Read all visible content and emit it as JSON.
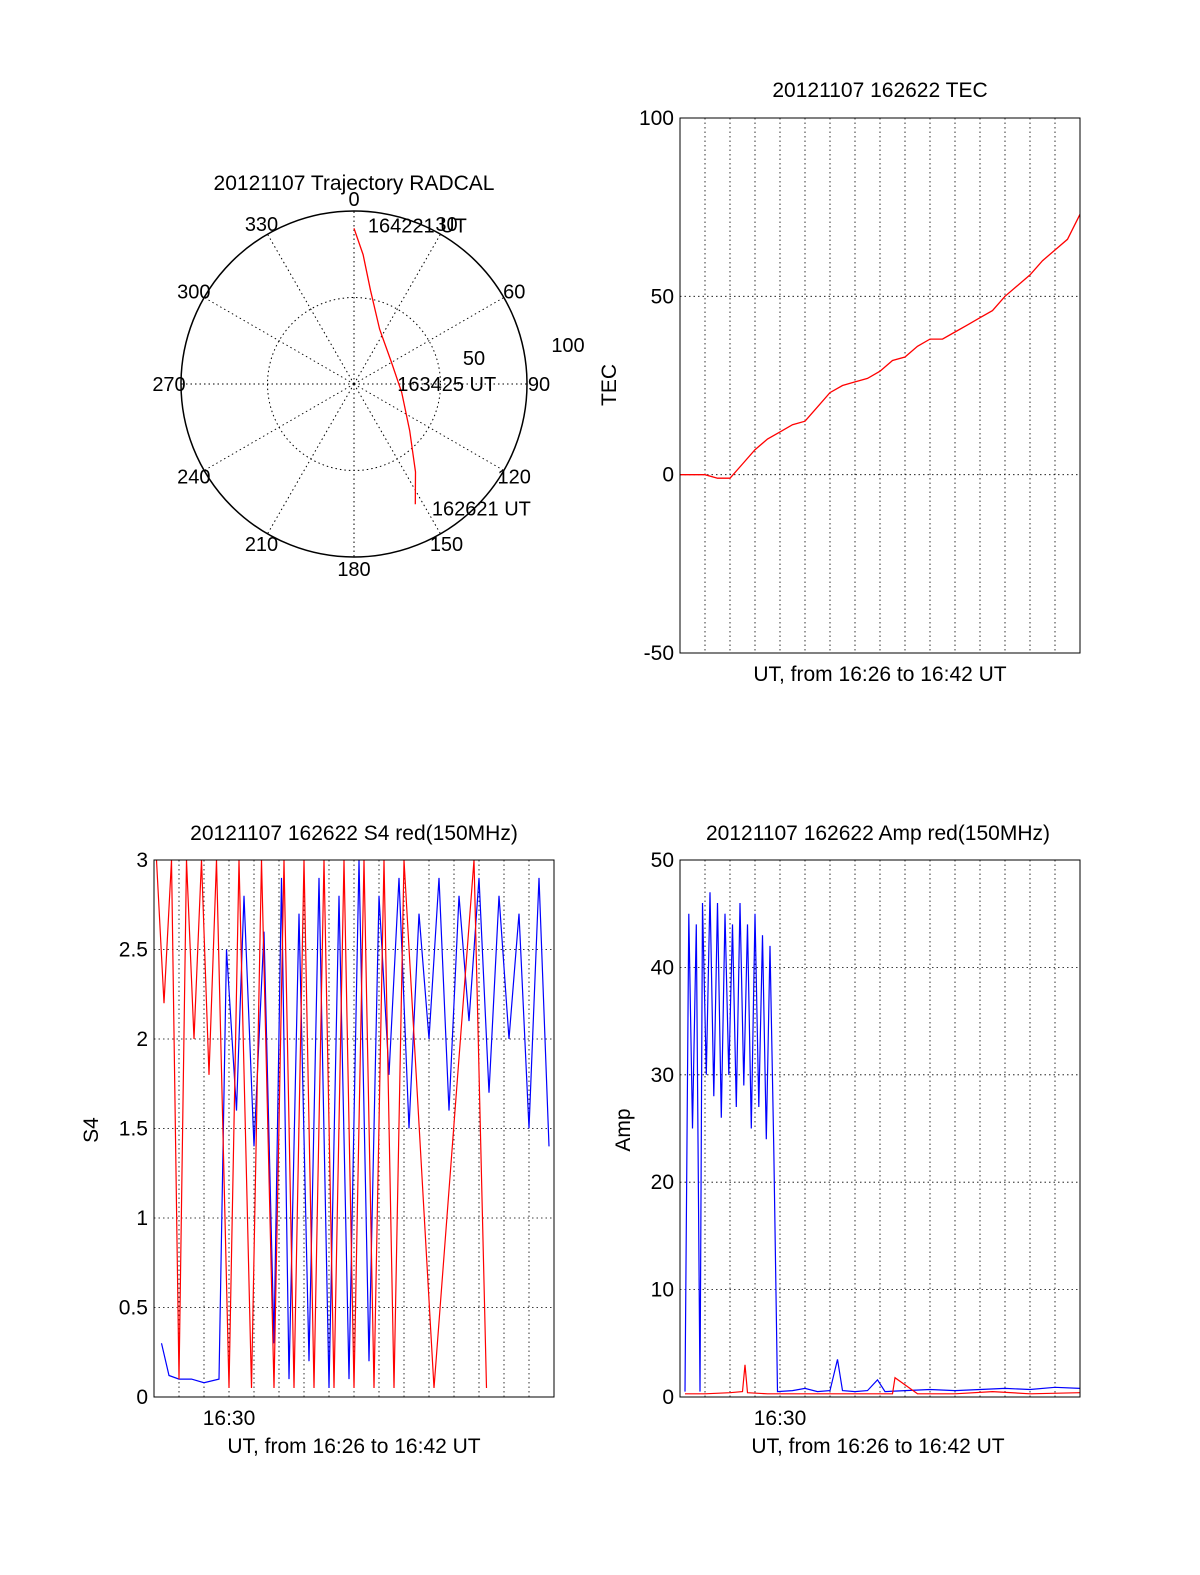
{
  "chart_data": [
    {
      "type": "polar",
      "title": "20121107 Trajectory RADCAL",
      "angle_labels": [
        "0",
        "30",
        "60",
        "90",
        "120",
        "150",
        "180",
        "210",
        "240",
        "270",
        "300",
        "330"
      ],
      "radius_labels": [
        "50",
        "100"
      ],
      "rlim": [
        0,
        100
      ],
      "grid": true,
      "trajectory": {
        "color": "#ff0000",
        "points": [
          {
            "az": 0,
            "r": 90
          },
          {
            "az": 4,
            "r": 75
          },
          {
            "az": 10,
            "r": 55
          },
          {
            "az": 25,
            "r": 35
          },
          {
            "az": 60,
            "r": 25
          },
          {
            "az": 100,
            "r": 28
          },
          {
            "az": 130,
            "r": 42
          },
          {
            "az": 145,
            "r": 62
          },
          {
            "az": 153,
            "r": 78
          }
        ]
      },
      "annotations": [
        {
          "text": "164221 UT",
          "az": 5,
          "r": 92
        },
        {
          "text": "163425 UT",
          "az": 90,
          "r": 25
        },
        {
          "text": "162621 UT",
          "az": 148,
          "r": 85
        }
      ]
    },
    {
      "type": "line",
      "title": "20121107 162622 TEC",
      "xlabel": "UT, from 16:26 to 16:42 UT",
      "ylabel": "TEC",
      "xlim": [
        0,
        16
      ],
      "ylim": [
        -50,
        100
      ],
      "yticks": [
        "-50",
        "0",
        "50",
        "100"
      ],
      "grid": true,
      "series": [
        {
          "color": "#ff0000",
          "x": [
            0,
            0.5,
            1,
            1.5,
            2,
            2.5,
            3,
            3.5,
            4,
            4.5,
            5,
            5.5,
            6,
            6.5,
            7,
            7.5,
            8,
            8.5,
            9,
            9.5,
            10,
            10.5,
            11,
            11.5,
            12,
            12.5,
            13,
            13.5,
            14,
            14.5,
            15,
            15.5,
            16
          ],
          "y": [
            0,
            0,
            0,
            -1,
            -1,
            3,
            7,
            10,
            12,
            14,
            15,
            19,
            23,
            25,
            26,
            27,
            29,
            32,
            33,
            36,
            38,
            38,
            40,
            42,
            44,
            46,
            50,
            53,
            56,
            60,
            63,
            66,
            73
          ]
        }
      ]
    },
    {
      "type": "line",
      "title": "20121107 162622 S4 red(150MHz)",
      "xlabel": "UT, from 16:26 to 16:42 UT",
      "ylabel": "S4",
      "xlim": [
        0,
        16
      ],
      "ylim": [
        0,
        3
      ],
      "yticks": [
        "0",
        "0.5",
        "1",
        "1.5",
        "2",
        "2.5",
        "3"
      ],
      "xticks": [
        {
          "x": 3,
          "label": "16:30"
        }
      ],
      "grid": true,
      "series": [
        {
          "color": "#0000ff",
          "x": [
            0.3,
            0.6,
            1.0,
            1.5,
            2.0,
            2.6,
            2.9,
            3.3,
            3.6,
            4.0,
            4.4,
            4.8,
            5.1,
            5.4,
            5.8,
            6.2,
            6.6,
            7.0,
            7.4,
            7.8,
            8.2,
            8.6,
            9.0,
            9.4,
            9.8,
            10.2,
            10.6,
            11.0,
            11.4,
            11.8,
            12.2,
            12.6,
            13.0,
            13.4,
            13.8,
            14.2,
            14.6,
            15.0,
            15.4,
            15.8
          ],
          "y": [
            0.3,
            0.12,
            0.1,
            0.1,
            0.08,
            0.1,
            2.5,
            1.6,
            2.8,
            1.4,
            2.6,
            0.3,
            2.9,
            0.1,
            2.7,
            0.2,
            2.9,
            0.05,
            2.8,
            0.1,
            3.0,
            0.2,
            2.8,
            1.8,
            2.9,
            1.5,
            2.7,
            2.0,
            2.9,
            1.6,
            2.8,
            2.1,
            2.9,
            1.7,
            2.8,
            2.0,
            2.7,
            1.5,
            2.9,
            1.4
          ]
        },
        {
          "color": "#ff0000",
          "x": [
            0.1,
            0.4,
            0.7,
            1.0,
            1.3,
            1.6,
            1.9,
            2.2,
            2.5,
            3.0,
            3.4,
            3.9,
            4.3,
            4.8,
            5.2,
            5.6,
            6.0,
            6.4,
            6.8,
            7.2,
            7.6,
            8.0,
            8.4,
            8.8,
            9.2,
            9.6,
            10.0,
            11.2,
            12.8,
            13.3
          ],
          "y": [
            3.0,
            2.2,
            3.0,
            0.1,
            3.0,
            2.0,
            3.0,
            1.8,
            3.0,
            0.05,
            3.0,
            0.05,
            3.0,
            0.05,
            3.0,
            0.05,
            3.0,
            0.05,
            3.0,
            0.05,
            3.0,
            0.05,
            3.0,
            0.05,
            3.0,
            0.05,
            3.0,
            0.05,
            3.0,
            0.05
          ]
        }
      ]
    },
    {
      "type": "line",
      "title": "20121107 162622 Amp red(150MHz)",
      "xlabel": "UT, from 16:26 to 16:42 UT",
      "ylabel": "Amp",
      "xlim": [
        0,
        16
      ],
      "ylim": [
        0,
        50
      ],
      "yticks": [
        "0",
        "10",
        "20",
        "30",
        "40",
        "50"
      ],
      "xticks": [
        {
          "x": 4,
          "label": "16:30"
        }
      ],
      "grid": true,
      "series": [
        {
          "color": "#0000ff",
          "x": [
            0.2,
            0.35,
            0.5,
            0.65,
            0.8,
            0.9,
            1.05,
            1.2,
            1.35,
            1.5,
            1.65,
            1.8,
            1.95,
            2.1,
            2.25,
            2.4,
            2.55,
            2.7,
            2.85,
            3.0,
            3.15,
            3.3,
            3.45,
            3.6,
            3.75,
            3.9,
            4.5,
            5.0,
            5.5,
            6.0,
            6.3,
            6.5,
            7.0,
            7.5,
            7.9,
            8.2,
            9.0,
            10.0,
            11.0,
            12.0,
            13.0,
            14.0,
            15.0,
            16.0
          ],
          "y": [
            0.5,
            45,
            25,
            44,
            0.5,
            46,
            30,
            47,
            28,
            46,
            26,
            45,
            30,
            44,
            27,
            46,
            29,
            44,
            25,
            45,
            27,
            43,
            24,
            42,
            23,
            0.5,
            0.6,
            0.8,
            0.5,
            0.6,
            3.5,
            0.6,
            0.5,
            0.6,
            1.6,
            0.5,
            0.6,
            0.7,
            0.6,
            0.7,
            0.8,
            0.7,
            0.9,
            0.8
          ]
        },
        {
          "color": "#ff0000",
          "x": [
            0.2,
            1.0,
            2.0,
            2.5,
            2.6,
            2.7,
            3.5,
            5.0,
            6.0,
            8.5,
            8.6,
            9.5,
            11.0,
            12.5,
            14.0,
            16.0
          ],
          "y": [
            0.3,
            0.3,
            0.4,
            0.5,
            3.0,
            0.4,
            0.3,
            0.3,
            0.3,
            0.3,
            1.8,
            0.3,
            0.3,
            0.5,
            0.3,
            0.4
          ]
        }
      ]
    }
  ]
}
